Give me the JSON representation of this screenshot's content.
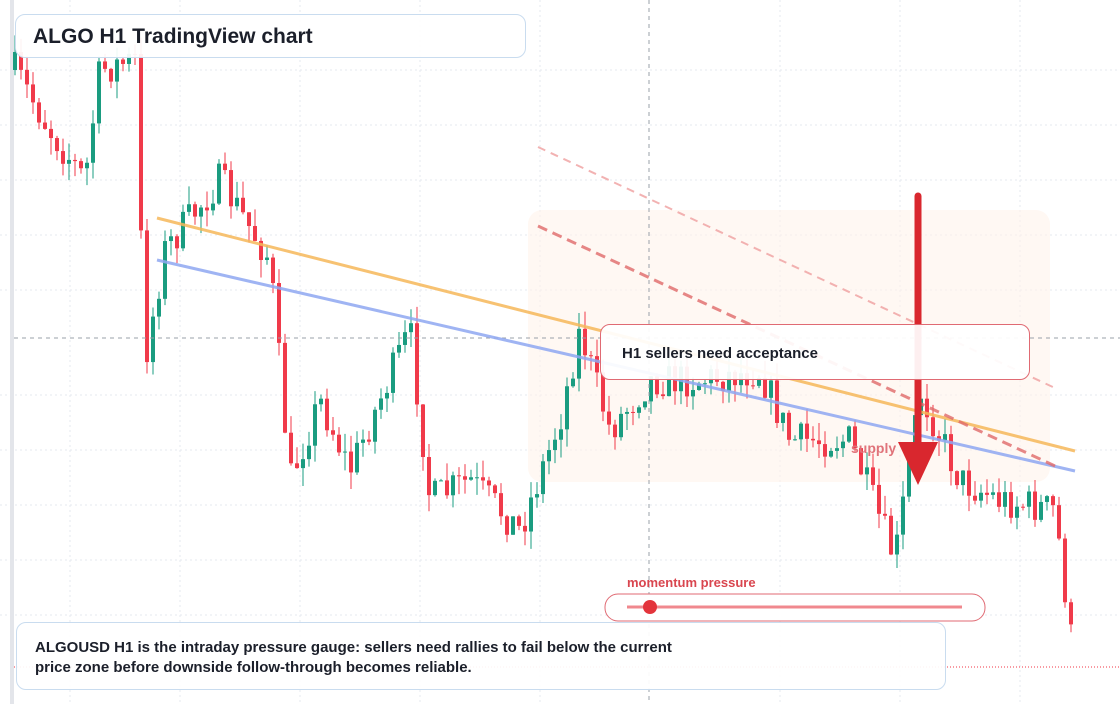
{
  "header": {
    "title": "ALGO H1 TradingView chart"
  },
  "annotations": {
    "callout": "H1 sellers need acceptance",
    "zone_label": "supply",
    "gauge_label": "momentum pressure"
  },
  "caption": "ALGOUSD H1 is the intraday pressure gauge: sellers need rallies to fail below the current price zone before downside follow-through becomes reliable."
}
